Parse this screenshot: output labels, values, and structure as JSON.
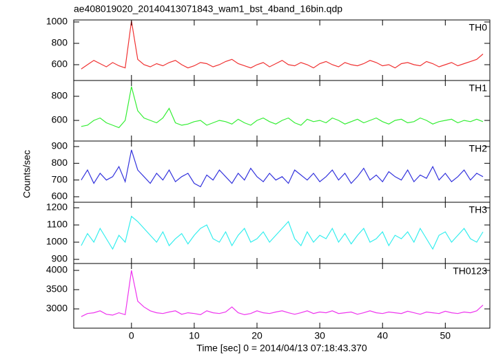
{
  "chart_data": [
    {
      "type": "line",
      "title": "ae408019020_20140413071843_wam1_bst_4band_16bin.qdp",
      "label": "TH0",
      "color": "#f03030",
      "ylim": [
        452,
        1019
      ],
      "yticks": [
        600,
        800,
        1000
      ],
      "x": [
        -8,
        -7,
        -6,
        -5,
        -4,
        -3,
        -2,
        -1,
        0,
        1,
        2,
        3,
        4,
        5,
        6,
        7,
        8,
        9,
        10,
        11,
        12,
        13,
        14,
        15,
        16,
        17,
        18,
        19,
        20,
        21,
        22,
        23,
        24,
        25,
        26,
        27,
        28,
        29,
        30,
        31,
        32,
        33,
        34,
        35,
        36,
        37,
        38,
        39,
        40,
        41,
        42,
        43,
        44,
        45,
        46,
        47,
        48,
        49,
        50,
        51,
        52,
        53,
        54,
        55,
        56
      ],
      "values": [
        560,
        600,
        640,
        610,
        580,
        620,
        590,
        570,
        1010,
        650,
        600,
        580,
        610,
        590,
        620,
        640,
        600,
        570,
        590,
        620,
        610,
        580,
        600,
        630,
        650,
        610,
        590,
        570,
        600,
        620,
        580,
        610,
        640,
        600,
        590,
        620,
        600,
        570,
        610,
        630,
        600,
        580,
        620,
        600,
        590,
        610,
        640,
        620,
        590,
        600,
        570,
        610,
        620,
        600,
        590,
        630,
        610,
        580,
        600,
        620,
        590,
        610,
        630,
        650,
        700
      ]
    },
    {
      "type": "line",
      "label": "TH1",
      "color": "#33ee33",
      "ylim": [
        429,
        931
      ],
      "yticks": [
        600,
        800
      ],
      "x": [
        -8,
        -7,
        -6,
        -5,
        -4,
        -3,
        -2,
        -1,
        0,
        1,
        2,
        3,
        4,
        5,
        6,
        7,
        8,
        9,
        10,
        11,
        12,
        13,
        14,
        15,
        16,
        17,
        18,
        19,
        20,
        21,
        22,
        23,
        24,
        25,
        26,
        27,
        28,
        29,
        30,
        31,
        32,
        33,
        34,
        35,
        36,
        37,
        38,
        39,
        40,
        41,
        42,
        43,
        44,
        45,
        46,
        47,
        48,
        49,
        50,
        51,
        52,
        53,
        54,
        55,
        56
      ],
      "values": [
        550,
        560,
        600,
        620,
        580,
        560,
        540,
        600,
        880,
        680,
        620,
        600,
        580,
        620,
        700,
        580,
        560,
        570,
        590,
        600,
        560,
        580,
        600,
        590,
        570,
        610,
        580,
        560,
        600,
        620,
        590,
        570,
        600,
        620,
        580,
        560,
        610,
        590,
        600,
        580,
        620,
        600,
        570,
        590,
        610,
        580,
        600,
        620,
        590,
        570,
        600,
        610,
        580,
        590,
        620,
        600,
        570,
        590,
        600,
        610,
        580,
        600,
        590,
        610,
        590
      ]
    },
    {
      "type": "line",
      "label": "TH2",
      "color": "#3333dd",
      "y_label": "Counts/sec",
      "ylim": [
        567,
        933
      ],
      "yticks": [
        600,
        700,
        800,
        900
      ],
      "x": [
        -8,
        -7,
        -6,
        -5,
        -4,
        -3,
        -2,
        -1,
        0,
        1,
        2,
        3,
        4,
        5,
        6,
        7,
        8,
        9,
        10,
        11,
        12,
        13,
        14,
        15,
        16,
        17,
        18,
        19,
        20,
        21,
        22,
        23,
        24,
        25,
        26,
        27,
        28,
        29,
        30,
        31,
        32,
        33,
        34,
        35,
        36,
        37,
        38,
        39,
        40,
        41,
        42,
        43,
        44,
        45,
        46,
        47,
        48,
        49,
        50,
        51,
        52,
        53,
        54,
        55,
        56
      ],
      "values": [
        700,
        760,
        680,
        740,
        700,
        720,
        780,
        690,
        880,
        760,
        720,
        680,
        740,
        700,
        760,
        690,
        720,
        740,
        680,
        660,
        730,
        700,
        760,
        720,
        680,
        740,
        700,
        770,
        720,
        690,
        740,
        700,
        720,
        680,
        760,
        730,
        700,
        740,
        690,
        720,
        760,
        700,
        740,
        680,
        720,
        770,
        700,
        730,
        690,
        750,
        720,
        700,
        760,
        690,
        730,
        710,
        780,
        700,
        740,
        690,
        720,
        760,
        700,
        740,
        720
      ]
    },
    {
      "type": "line",
      "label": "TH3",
      "color": "#33eeee",
      "ylim": [
        876,
        1232
      ],
      "yticks": [
        900,
        1000,
        1100,
        1200
      ],
      "x": [
        -8,
        -7,
        -6,
        -5,
        -4,
        -3,
        -2,
        -1,
        0,
        1,
        2,
        3,
        4,
        5,
        6,
        7,
        8,
        9,
        10,
        11,
        12,
        13,
        14,
        15,
        16,
        17,
        18,
        19,
        20,
        21,
        22,
        23,
        24,
        25,
        26,
        27,
        28,
        29,
        30,
        31,
        32,
        33,
        34,
        35,
        36,
        37,
        38,
        39,
        40,
        41,
        42,
        43,
        44,
        45,
        46,
        47,
        48,
        49,
        50,
        51,
        52,
        53,
        54,
        55,
        56
      ],
      "values": [
        980,
        1050,
        1000,
        1080,
        1020,
        960,
        1040,
        1000,
        1150,
        1120,
        1080,
        1040,
        1000,
        1060,
        980,
        1020,
        1050,
        990,
        1040,
        1080,
        1100,
        1020,
        1000,
        1060,
        980,
        1040,
        1080,
        1000,
        1020,
        1060,
        1000,
        1040,
        1080,
        1120,
        1020,
        980,
        1060,
        1000,
        1040,
        1020,
        1080,
        1000,
        1050,
        990,
        1040,
        1080,
        1000,
        1020,
        1060,
        980,
        1040,
        1020,
        1060,
        1000,
        1080,
        1020,
        960,
        1040,
        1060,
        1000,
        1040,
        1080,
        1020,
        1000,
        1060
      ]
    },
    {
      "type": "line",
      "label": "TH0123",
      "color": "#ee33ee",
      "x_label": "Time [sec] 0 = 2014/04/13 07:18:43.370",
      "ylim": [
        2500,
        4179
      ],
      "yticks": [
        3000,
        3500,
        4000
      ],
      "xlim": [
        -9.2,
        57.1
      ],
      "xticks": [
        0,
        10,
        20,
        30,
        40,
        50
      ],
      "x": [
        -8,
        -7,
        -6,
        -5,
        -4,
        -3,
        -2,
        -1,
        0,
        1,
        2,
        3,
        4,
        5,
        6,
        7,
        8,
        9,
        10,
        11,
        12,
        13,
        14,
        15,
        16,
        17,
        18,
        19,
        20,
        21,
        22,
        23,
        24,
        25,
        26,
        27,
        28,
        29,
        30,
        31,
        32,
        33,
        34,
        35,
        36,
        37,
        38,
        39,
        40,
        41,
        42,
        43,
        44,
        45,
        46,
        47,
        48,
        49,
        50,
        51,
        52,
        53,
        54,
        55,
        56
      ],
      "values": [
        2800,
        2880,
        2900,
        2950,
        2860,
        2840,
        2900,
        2850,
        4000,
        3200,
        3050,
        2950,
        2900,
        2880,
        2920,
        2950,
        2860,
        2900,
        2880,
        2850,
        2950,
        2900,
        2880,
        2920,
        3050,
        2900,
        2850,
        2880,
        2950,
        2900,
        2880,
        2920,
        2950,
        2900,
        2860,
        2900,
        2950,
        2880,
        2920,
        2900,
        2950,
        2880,
        2900,
        2920,
        2860,
        2900,
        2950,
        2900,
        2880,
        2920,
        2900,
        2880,
        2940,
        2900,
        2860,
        2920,
        2900,
        2880,
        2940,
        2900,
        2880,
        2920,
        2900,
        2950,
        3100
      ]
    }
  ]
}
